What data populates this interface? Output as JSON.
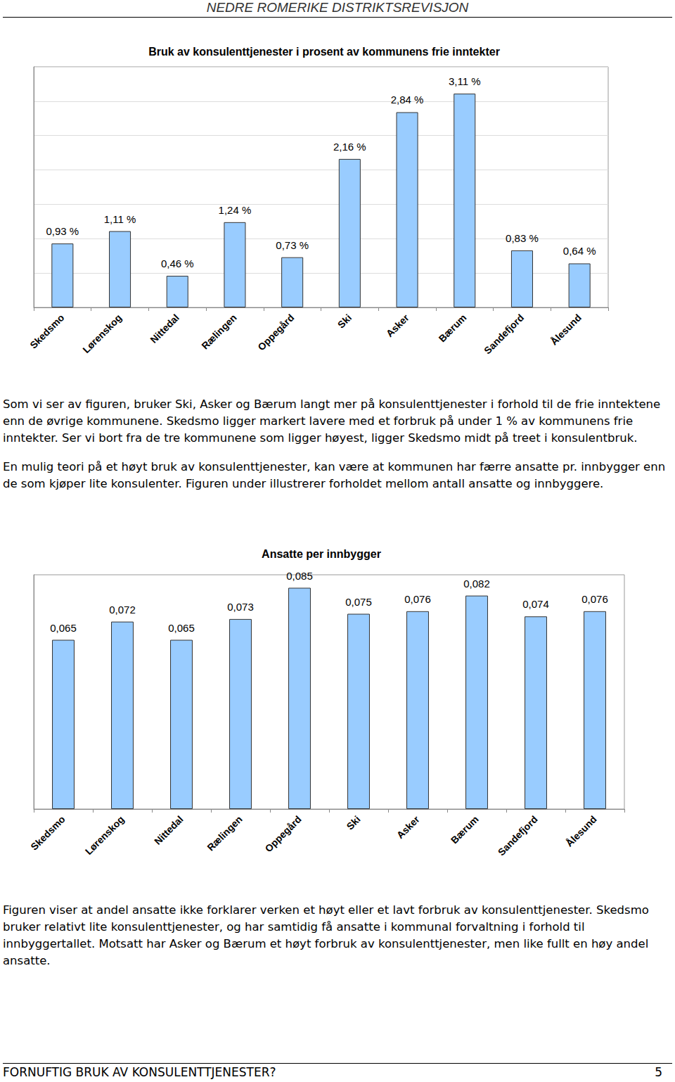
{
  "header": "NEDRE ROMERIKE DISTRIKTSREVISJON",
  "chart_data": [
    {
      "type": "bar",
      "title": "Bruk av konsulenttjenester i prosent av kommunens frie inntekter",
      "categories": [
        "Skedsmo",
        "Lørenskog",
        "Nittedal",
        "Rælingen",
        "Oppegård",
        "Ski",
        "Asker",
        "Bærum",
        "Sandefjord",
        "Ålesund"
      ],
      "values": [
        0.93,
        1.11,
        0.46,
        1.24,
        0.73,
        2.16,
        2.84,
        3.11,
        0.83,
        0.64
      ],
      "value_labels": [
        "0,93 %",
        "1,11 %",
        "0,46 %",
        "1,24 %",
        "0,73 %",
        "2,16 %",
        "2,84 %",
        "3,11 %",
        "0,83 %",
        "0,64 %"
      ],
      "color": "#99ccff",
      "ylim": [
        0,
        3.5
      ],
      "yticks": [
        0,
        0.5,
        1,
        1.5,
        2,
        2.5,
        3,
        3.5
      ],
      "grid": true,
      "data_labels": true,
      "tick_labels": "x"
    },
    {
      "type": "bar",
      "title": "Ansatte per innbygger",
      "categories": [
        "Skedsmo",
        "Lørenskog",
        "Nittedal",
        "Rælingen",
        "Oppegård",
        "Ski",
        "Asker",
        "Bærum",
        "Sandefjord",
        "Ålesund"
      ],
      "values": [
        0.065,
        0.072,
        0.065,
        0.073,
        0.085,
        0.075,
        0.076,
        0.082,
        0.074,
        0.076
      ],
      "value_labels": [
        "0,065",
        "0,072",
        "0,065",
        "0,073",
        "0,085",
        "0,075",
        "0,076",
        "0,082",
        "0,074",
        "0,076"
      ],
      "color": "#99ccff",
      "ylim": [
        0,
        0.09
      ],
      "yticks": [
        0,
        0.09
      ],
      "grid": false,
      "data_labels": true,
      "tick_labels": "x"
    }
  ],
  "text_after_chart_1": [
    "Som vi ser av figuren, bruker Ski, Asker og Bærum langt mer på konsulenttjenester i forhold til de frie inntektene enn de øvrige kommunene. Skedsmo ligger markert lavere med et forbruk på under 1 % av kommunens frie inntekter. Ser vi bort fra de tre kommunene som ligger høyest, ligger Skedsmo midt på treet i konsulentbruk.",
    "En mulig teori på et høyt bruk av konsulenttjenester, kan være at kommunen har færre ansatte pr. innbygger enn de som kjøper lite konsulenter. Figuren under illustrerer forholdet mellom antall ansatte og innbyggere."
  ],
  "text_after_chart_2": [
    "Figuren viser at andel ansatte ikke forklarer verken et høyt eller et lavt forbruk av konsulenttjenester. Skedsmo bruker relativt lite konsulenttjenester, og har samtidig få ansatte i kommunal forvaltning i forhold til innbyggertallet. Motsatt har Asker og Bærum et høyt forbruk av konsulenttjenester, men like fullt en høy andel ansatte."
  ],
  "footer": {
    "title": "FORNUFTIG BRUK AV KONSULENTTJENESTER?",
    "page": 5
  }
}
